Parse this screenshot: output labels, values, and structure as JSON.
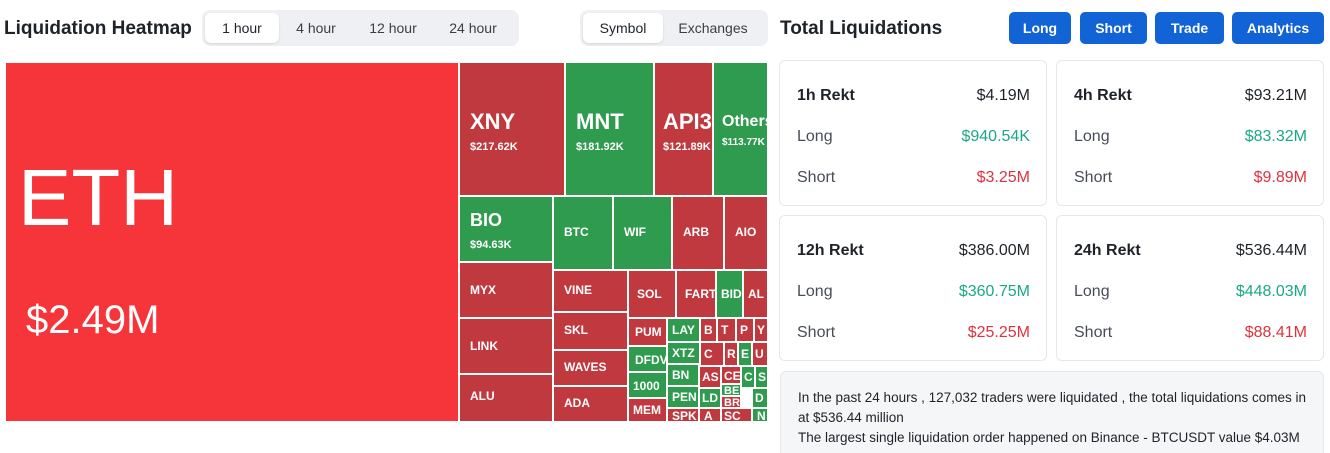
{
  "heatmap": {
    "title": "Liquidation Heatmap",
    "timeframes": [
      "1 hour",
      "4 hour",
      "12 hour",
      "24 hour"
    ],
    "active_timeframe": "1 hour",
    "group_by": [
      "Symbol",
      "Exchanges"
    ],
    "active_group_by": "Symbol",
    "colors": {
      "red": "#f5353a",
      "dark_red": "#c0393f",
      "green": "#2e9b4e"
    },
    "tiles": [
      {
        "symbol": "ETH",
        "value": "$2.49M",
        "color": "red"
      },
      {
        "symbol": "XNY",
        "value": "$217.62K",
        "color": "dark_red"
      },
      {
        "symbol": "MNT",
        "value": "$181.92K",
        "color": "green"
      },
      {
        "symbol": "API3",
        "value": "$121.89K",
        "color": "dark_red"
      },
      {
        "symbol": "Others",
        "value": "$113.77K",
        "color": "green"
      },
      {
        "symbol": "BIO",
        "value": "$94.63K",
        "color": "green"
      },
      {
        "symbol": "BTC",
        "color": "green"
      },
      {
        "symbol": "WIF",
        "color": "green"
      },
      {
        "symbol": "ARB",
        "color": "dark_red"
      },
      {
        "symbol": "AIO",
        "color": "dark_red"
      },
      {
        "symbol": "MYX",
        "color": "dark_red"
      },
      {
        "symbol": "VINE",
        "color": "dark_red"
      },
      {
        "symbol": "SOL",
        "color": "dark_red"
      },
      {
        "symbol": "FART",
        "color": "dark_red"
      },
      {
        "symbol": "BID",
        "color": "green"
      },
      {
        "symbol": "AL",
        "color": "dark_red"
      },
      {
        "symbol": "SKL",
        "color": "dark_red"
      },
      {
        "symbol": "LINK",
        "color": "dark_red"
      },
      {
        "symbol": "PUM",
        "color": "dark_red"
      },
      {
        "symbol": "LAY",
        "color": "green"
      },
      {
        "symbol": "B",
        "color": "dark_red"
      },
      {
        "symbol": "T",
        "color": "dark_red"
      },
      {
        "symbol": "P",
        "color": "dark_red"
      },
      {
        "symbol": "Y",
        "color": "dark_red"
      },
      {
        "symbol": "DFDV",
        "color": "green"
      },
      {
        "symbol": "XTZ",
        "color": "green"
      },
      {
        "symbol": "C",
        "color": "dark_red"
      },
      {
        "symbol": "R",
        "color": "dark_red"
      },
      {
        "symbol": "E",
        "color": "green"
      },
      {
        "symbol": "U",
        "color": "dark_red"
      },
      {
        "symbol": "WAVES",
        "color": "dark_red"
      },
      {
        "symbol": "PEN",
        "color": "green"
      },
      {
        "symbol": "BN",
        "color": "green"
      },
      {
        "symbol": "AS",
        "color": "dark_red"
      },
      {
        "symbol": "CE",
        "color": "dark_red"
      },
      {
        "symbol": "C",
        "color": "green"
      },
      {
        "symbol": "S",
        "color": "green"
      },
      {
        "symbol": "1000",
        "color": "green"
      },
      {
        "symbol": "LD",
        "color": "green"
      },
      {
        "symbol": "BE",
        "color": "green"
      },
      {
        "symbol": "BR",
        "color": "dark_red"
      },
      {
        "symbol": "D",
        "color": "green"
      },
      {
        "symbol": "ALU",
        "color": "dark_red"
      },
      {
        "symbol": "ADA",
        "color": "dark_red"
      },
      {
        "symbol": "MEM",
        "color": "dark_red"
      },
      {
        "symbol": "SPK",
        "color": "dark_red"
      },
      {
        "symbol": "A",
        "color": "dark_red"
      },
      {
        "symbol": "SC",
        "color": "dark_red"
      },
      {
        "symbol": "N",
        "color": "green"
      }
    ]
  },
  "liquidations": {
    "title": "Total Liquidations",
    "buttons": [
      "Long",
      "Short",
      "Trade",
      "Analytics"
    ],
    "button_color": "#1263d6",
    "cards": [
      {
        "label": "1h Rekt",
        "total": "$4.19M",
        "long_label": "Long",
        "long": "$940.54K",
        "short_label": "Short",
        "short": "$3.25M"
      },
      {
        "label": "4h Rekt",
        "total": "$93.21M",
        "long_label": "Long",
        "long": "$83.32M",
        "short_label": "Short",
        "short": "$9.89M"
      },
      {
        "label": "12h Rekt",
        "total": "$386.00M",
        "long_label": "Long",
        "long": "$360.75M",
        "short_label": "Short",
        "short": "$25.25M"
      },
      {
        "label": "24h Rekt",
        "total": "$536.44M",
        "long_label": "Long",
        "long": "$448.03M",
        "short_label": "Short",
        "short": "$88.41M"
      }
    ],
    "summary": {
      "line1": "In the past 24 hours , 127,032 traders were liquidated , the total liquidations comes in at $536.44 million",
      "line2": "The largest single liquidation order happened on Binance - BTCUSDT value $4.03M"
    }
  }
}
